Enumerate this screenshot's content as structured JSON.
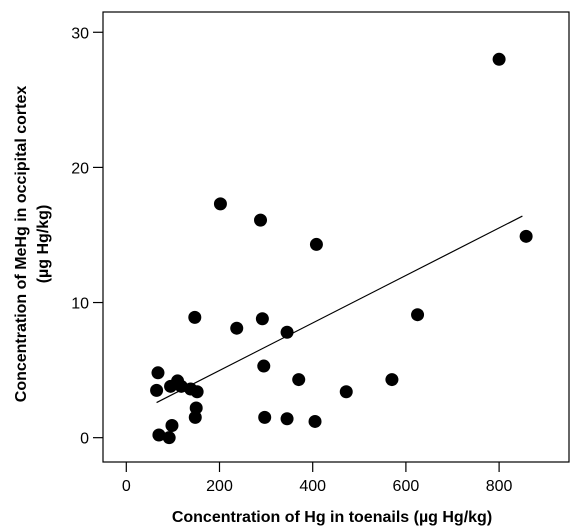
{
  "chart_data": {
    "type": "scatter",
    "xlabel": "Concentration of Hg in toenails (µg Hg/kg)",
    "ylabel_line1": "Concentration of MeHg in occipital cortex",
    "ylabel_line2": "(µg Hg/kg)",
    "xlim": [
      -50,
      950
    ],
    "ylim": [
      -1.8,
      31.5
    ],
    "x_ticks": [
      0,
      200,
      400,
      600,
      800
    ],
    "y_ticks": [
      0,
      10,
      20,
      30
    ],
    "x_tick_labels": [
      "0",
      "200",
      "400",
      "600",
      "800"
    ],
    "y_tick_labels": [
      "0",
      "10",
      "20",
      "30"
    ],
    "grid": false,
    "legend": "none",
    "marker_color": "#000000",
    "points": [
      {
        "x": 68,
        "y": 4.8
      },
      {
        "x": 65,
        "y": 3.5
      },
      {
        "x": 70,
        "y": 0.2
      },
      {
        "x": 92,
        "y": 0.0
      },
      {
        "x": 98,
        "y": 0.9
      },
      {
        "x": 95,
        "y": 3.8
      },
      {
        "x": 110,
        "y": 4.2
      },
      {
        "x": 118,
        "y": 3.8
      },
      {
        "x": 138,
        "y": 3.6
      },
      {
        "x": 147,
        "y": 8.9
      },
      {
        "x": 152,
        "y": 3.4
      },
      {
        "x": 150,
        "y": 2.2
      },
      {
        "x": 148,
        "y": 1.5
      },
      {
        "x": 202,
        "y": 17.3
      },
      {
        "x": 237,
        "y": 8.1
      },
      {
        "x": 288,
        "y": 16.1
      },
      {
        "x": 292,
        "y": 8.8
      },
      {
        "x": 295,
        "y": 5.3
      },
      {
        "x": 297,
        "y": 1.5
      },
      {
        "x": 345,
        "y": 7.8
      },
      {
        "x": 345,
        "y": 1.4
      },
      {
        "x": 370,
        "y": 4.3
      },
      {
        "x": 405,
        "y": 1.2
      },
      {
        "x": 408,
        "y": 14.3
      },
      {
        "x": 472,
        "y": 3.4
      },
      {
        "x": 570,
        "y": 4.3
      },
      {
        "x": 625,
        "y": 9.1
      },
      {
        "x": 800,
        "y": 28.0
      },
      {
        "x": 858,
        "y": 14.9
      }
    ],
    "trend_line": {
      "x": [
        65,
        850
      ],
      "y": [
        2.6,
        16.4
      ]
    }
  }
}
